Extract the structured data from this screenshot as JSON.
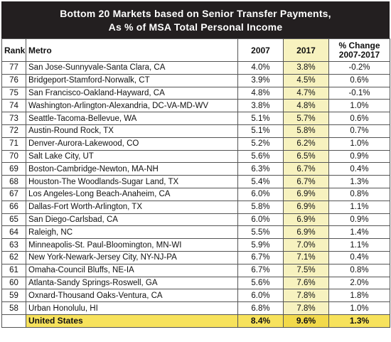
{
  "title": {
    "line1": "Bottom 20 Markets based on Senior Transfer Payments,",
    "line2": "As % of MSA Total Personal Income"
  },
  "headers": {
    "rank": "Rank",
    "metro": "Metro",
    "y2007": "2007",
    "y2017": "2017",
    "change_line1": "% Change",
    "change_line2": "2007-2017"
  },
  "rows": [
    {
      "rank": "77",
      "metro": "San Jose-Sunnyvale-Santa Clara, CA",
      "v2007": "4.0%",
      "v2017": "3.8%",
      "change": "-0.2%"
    },
    {
      "rank": "76",
      "metro": "Bridgeport-Stamford-Norwalk, CT",
      "v2007": "3.9%",
      "v2017": "4.5%",
      "change": "0.6%"
    },
    {
      "rank": "75",
      "metro": "San Francisco-Oakland-Hayward, CA",
      "v2007": "4.8%",
      "v2017": "4.7%",
      "change": "-0.1%"
    },
    {
      "rank": "74",
      "metro": "Washington-Arlington-Alexandria, DC-VA-MD-WV",
      "v2007": "3.8%",
      "v2017": "4.8%",
      "change": "1.0%"
    },
    {
      "rank": "73",
      "metro": "Seattle-Tacoma-Bellevue, WA",
      "v2007": "5.1%",
      "v2017": "5.7%",
      "change": "0.6%"
    },
    {
      "rank": "72",
      "metro": "Austin-Round Rock, TX",
      "v2007": "5.1%",
      "v2017": "5.8%",
      "change": "0.7%"
    },
    {
      "rank": "71",
      "metro": "Denver-Aurora-Lakewood, CO",
      "v2007": "5.2%",
      "v2017": "6.2%",
      "change": "1.0%"
    },
    {
      "rank": "70",
      "metro": "Salt Lake City, UT",
      "v2007": "5.6%",
      "v2017": "6.5%",
      "change": "0.9%"
    },
    {
      "rank": "69",
      "metro": "Boston-Cambridge-Newton, MA-NH",
      "v2007": "6.3%",
      "v2017": "6.7%",
      "change": "0.4%"
    },
    {
      "rank": "68",
      "metro": "Houston-The Woodlands-Sugar Land, TX",
      "v2007": "5.4%",
      "v2017": "6.7%",
      "change": "1.3%"
    },
    {
      "rank": "67",
      "metro": "Los Angeles-Long Beach-Anaheim, CA",
      "v2007": "6.0%",
      "v2017": "6.9%",
      "change": "0.8%"
    },
    {
      "rank": "66",
      "metro": "Dallas-Fort Worth-Arlington, TX",
      "v2007": "5.8%",
      "v2017": "6.9%",
      "change": "1.1%"
    },
    {
      "rank": "65",
      "metro": "San Diego-Carlsbad, CA",
      "v2007": "6.0%",
      "v2017": "6.9%",
      "change": "0.9%"
    },
    {
      "rank": "64",
      "metro": "Raleigh, NC",
      "v2007": "5.5%",
      "v2017": "6.9%",
      "change": "1.4%"
    },
    {
      "rank": "63",
      "metro": "Minneapolis-St. Paul-Bloomington, MN-WI",
      "v2007": "5.9%",
      "v2017": "7.0%",
      "change": "1.1%"
    },
    {
      "rank": "62",
      "metro": "New York-Newark-Jersey City, NY-NJ-PA",
      "v2007": "6.7%",
      "v2017": "7.1%",
      "change": "0.4%"
    },
    {
      "rank": "61",
      "metro": "Omaha-Council Bluffs, NE-IA",
      "v2007": "6.7%",
      "v2017": "7.5%",
      "change": "0.8%"
    },
    {
      "rank": "60",
      "metro": "Atlanta-Sandy Springs-Roswell, GA",
      "v2007": "5.6%",
      "v2017": "7.6%",
      "change": "2.0%"
    },
    {
      "rank": "59",
      "metro": "Oxnard-Thousand Oaks-Ventura, CA",
      "v2007": "6.0%",
      "v2017": "7.8%",
      "change": "1.8%"
    },
    {
      "rank": "58",
      "metro": "Urban Honolulu, HI",
      "v2007": "6.8%",
      "v2017": "7.8%",
      "change": "1.0%"
    }
  ],
  "total": {
    "metro": "United States",
    "v2007": "8.4%",
    "v2017": "9.6%",
    "change": "1.3%"
  }
}
